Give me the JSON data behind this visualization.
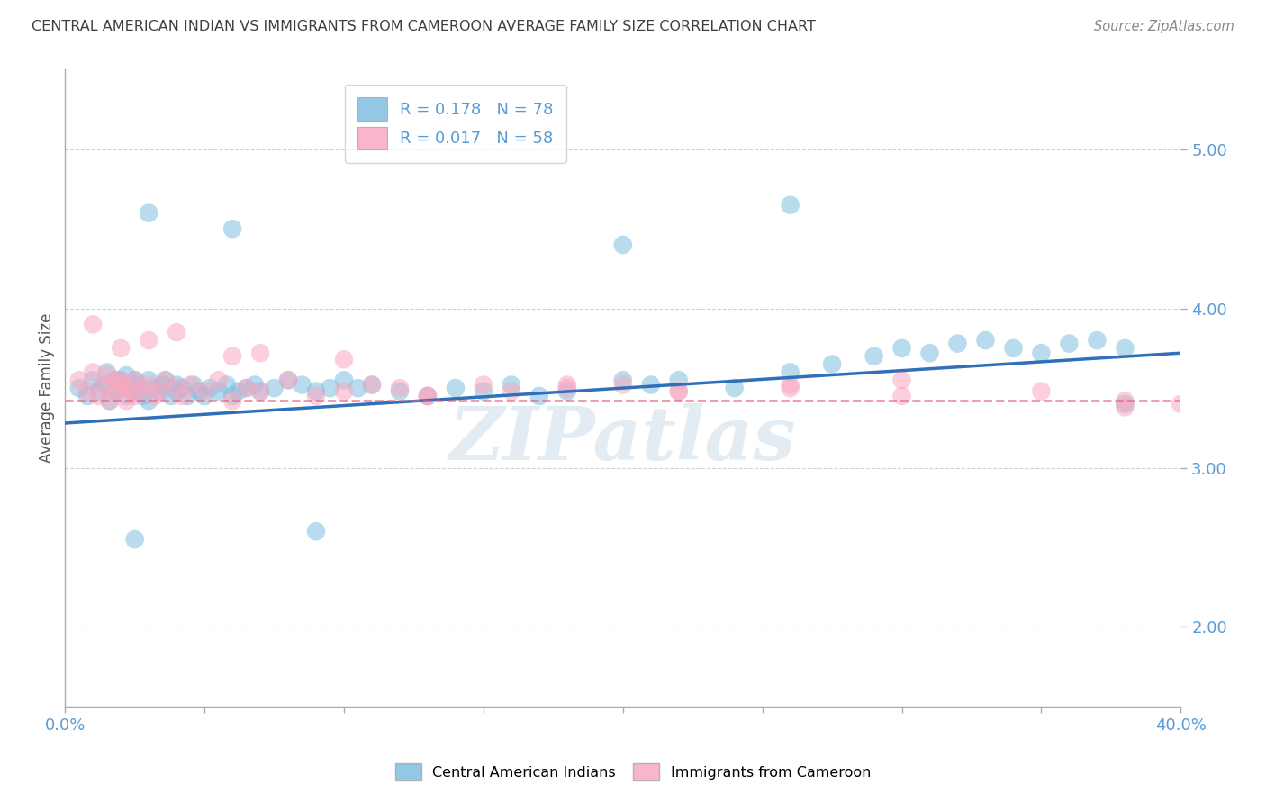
{
  "title": "CENTRAL AMERICAN INDIAN VS IMMIGRANTS FROM CAMEROON AVERAGE FAMILY SIZE CORRELATION CHART",
  "source": "Source: ZipAtlas.com",
  "ylabel": "Average Family Size",
  "xlim": [
    0.0,
    0.4
  ],
  "ylim": [
    1.5,
    5.5
  ],
  "yticks": [
    2.0,
    3.0,
    4.0,
    5.0
  ],
  "xticks": [
    0.0,
    0.05,
    0.1,
    0.15,
    0.2,
    0.25,
    0.3,
    0.35,
    0.4
  ],
  "blue_R": 0.178,
  "blue_N": 78,
  "pink_R": 0.017,
  "pink_N": 58,
  "blue_color": "#7fbfdf",
  "pink_color": "#f9a8c0",
  "blue_line_color": "#3070b8",
  "pink_line_color": "#e06080",
  "bg_color": "#ffffff",
  "grid_color": "#cccccc",
  "title_color": "#404040",
  "axis_label_color": "#5b9bd5",
  "blue_scatter_x": [
    0.005,
    0.008,
    0.01,
    0.012,
    0.014,
    0.015,
    0.016,
    0.018,
    0.018,
    0.02,
    0.02,
    0.022,
    0.022,
    0.024,
    0.025,
    0.025,
    0.026,
    0.028,
    0.03,
    0.03,
    0.032,
    0.034,
    0.035,
    0.036,
    0.038,
    0.04,
    0.04,
    0.042,
    0.044,
    0.046,
    0.048,
    0.05,
    0.052,
    0.055,
    0.058,
    0.06,
    0.062,
    0.065,
    0.068,
    0.07,
    0.075,
    0.08,
    0.085,
    0.09,
    0.095,
    0.1,
    0.105,
    0.11,
    0.12,
    0.13,
    0.14,
    0.15,
    0.16,
    0.17,
    0.18,
    0.2,
    0.21,
    0.22,
    0.24,
    0.26,
    0.275,
    0.29,
    0.3,
    0.31,
    0.32,
    0.33,
    0.34,
    0.35,
    0.36,
    0.37,
    0.38,
    0.03,
    0.06,
    0.2,
    0.26,
    0.38,
    0.025,
    0.09
  ],
  "blue_scatter_y": [
    3.5,
    3.45,
    3.55,
    3.48,
    3.52,
    3.6,
    3.42,
    3.55,
    3.48,
    3.5,
    3.55,
    3.58,
    3.45,
    3.5,
    3.55,
    3.48,
    3.52,
    3.45,
    3.55,
    3.42,
    3.5,
    3.48,
    3.52,
    3.55,
    3.45,
    3.48,
    3.52,
    3.5,
    3.45,
    3.52,
    3.48,
    3.45,
    3.5,
    3.48,
    3.52,
    3.45,
    3.48,
    3.5,
    3.52,
    3.48,
    3.5,
    3.55,
    3.52,
    3.48,
    3.5,
    3.55,
    3.5,
    3.52,
    3.48,
    3.45,
    3.5,
    3.48,
    3.52,
    3.45,
    3.48,
    3.55,
    3.52,
    3.55,
    3.5,
    3.6,
    3.65,
    3.7,
    3.75,
    3.72,
    3.78,
    3.8,
    3.75,
    3.72,
    3.78,
    3.8,
    3.75,
    4.6,
    4.5,
    4.4,
    4.65,
    3.4,
    2.55,
    2.6
  ],
  "pink_scatter_x": [
    0.005,
    0.008,
    0.01,
    0.012,
    0.014,
    0.015,
    0.016,
    0.018,
    0.018,
    0.02,
    0.02,
    0.022,
    0.022,
    0.024,
    0.025,
    0.025,
    0.028,
    0.03,
    0.032,
    0.034,
    0.036,
    0.04,
    0.042,
    0.045,
    0.05,
    0.055,
    0.06,
    0.065,
    0.07,
    0.08,
    0.09,
    0.1,
    0.11,
    0.12,
    0.13,
    0.15,
    0.16,
    0.18,
    0.2,
    0.22,
    0.26,
    0.3,
    0.35,
    0.38,
    0.01,
    0.02,
    0.03,
    0.04,
    0.06,
    0.07,
    0.1,
    0.13,
    0.18,
    0.22,
    0.26,
    0.3,
    0.38,
    0.4
  ],
  "pink_scatter_y": [
    3.55,
    3.48,
    3.6,
    3.45,
    3.52,
    3.58,
    3.42,
    3.55,
    3.48,
    3.5,
    3.55,
    3.42,
    3.52,
    3.48,
    3.55,
    3.45,
    3.5,
    3.52,
    3.45,
    3.48,
    3.55,
    3.5,
    3.45,
    3.52,
    3.48,
    3.55,
    3.42,
    3.5,
    3.48,
    3.55,
    3.45,
    3.48,
    3.52,
    3.5,
    3.45,
    3.52,
    3.48,
    3.5,
    3.52,
    3.48,
    3.52,
    3.45,
    3.48,
    3.42,
    3.9,
    3.75,
    3.8,
    3.85,
    3.7,
    3.72,
    3.68,
    3.45,
    3.52,
    3.48,
    3.5,
    3.55,
    3.38,
    3.4
  ],
  "watermark": "ZIPatlas"
}
